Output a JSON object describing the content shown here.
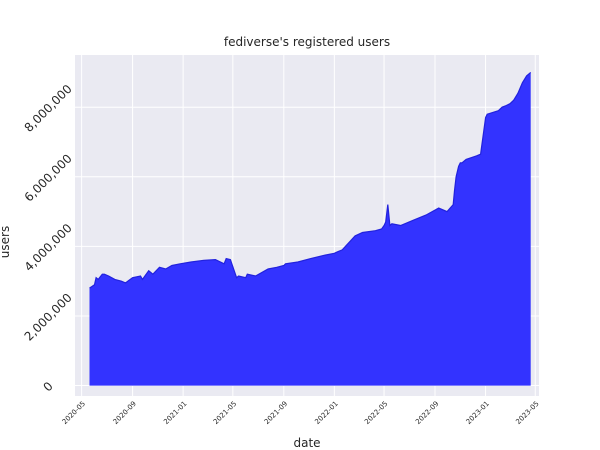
{
  "chart_data": {
    "type": "area",
    "title": "fediverse's registered users",
    "xlabel": "date",
    "ylabel": "users",
    "xlim": [
      "2020-04-15",
      "2023-05-10"
    ],
    "ylim": [
      -300000,
      9500000
    ],
    "grid": true,
    "x_ticks": [
      "2020-05",
      "2020-09",
      "2021-01",
      "2021-05",
      "2021-09",
      "2022-01",
      "2022-05",
      "2022-09",
      "2023-01",
      "2023-05"
    ],
    "y_ticks": [
      {
        "value": 0,
        "label": "0"
      },
      {
        "value": 2000000,
        "label": "2,000,000"
      },
      {
        "value": 4000000,
        "label": "4,000,000"
      },
      {
        "value": 6000000,
        "label": "6,000,000"
      },
      {
        "value": 8000000,
        "label": "8,000,000"
      }
    ],
    "colors": {
      "fill": "#3333ff",
      "line": "#2222dd",
      "plot_bg": "#eaeaf2",
      "grid": "#ffffff"
    },
    "series": [
      {
        "x": [
          "2020-05-20",
          "2020-06-01",
          "2020-06-05",
          "2020-06-10",
          "2020-06-20",
          "2020-06-25",
          "2020-07-05",
          "2020-07-20",
          "2020-08-05",
          "2020-08-15",
          "2020-09-01",
          "2020-09-20",
          "2020-09-25",
          "2020-10-10",
          "2020-10-20",
          "2020-11-05",
          "2020-11-20",
          "2020-12-05",
          "2020-12-25",
          "2021-01-20",
          "2021-02-20",
          "2021-03-20",
          "2021-04-10",
          "2021-04-15",
          "2021-04-25",
          "2021-05-10",
          "2021-05-15",
          "2021-06-01",
          "2021-06-05",
          "2021-06-25",
          "2021-07-25",
          "2021-08-15",
          "2021-09-01",
          "2021-09-05",
          "2021-10-05",
          "2021-11-05",
          "2021-12-10",
          "2022-01-01",
          "2022-01-10",
          "2022-01-20",
          "2022-02-20",
          "2022-03-10",
          "2022-04-10",
          "2022-04-25",
          "2022-05-01",
          "2022-05-05",
          "2022-05-10",
          "2022-05-15",
          "2022-05-20",
          "2022-06-10",
          "2022-07-10",
          "2022-08-10",
          "2022-09-10",
          "2022-09-30",
          "2022-10-15",
          "2022-10-18",
          "2022-10-22",
          "2022-10-28",
          "2022-11-01",
          "2022-11-05",
          "2022-11-15",
          "2022-12-10",
          "2022-12-20",
          "2023-01-01",
          "2023-01-05",
          "2023-02-01",
          "2023-02-10",
          "2023-02-20",
          "2023-03-01",
          "2023-03-10",
          "2023-03-20",
          "2023-03-31",
          "2023-04-10",
          "2023-04-20"
        ],
        "y": [
          2800000,
          2900000,
          3100000,
          3050000,
          3200000,
          3200000,
          3150000,
          3050000,
          3000000,
          2950000,
          3100000,
          3150000,
          3050000,
          3300000,
          3200000,
          3400000,
          3350000,
          3450000,
          3500000,
          3550000,
          3600000,
          3620000,
          3500000,
          3650000,
          3620000,
          3100000,
          3150000,
          3100000,
          3200000,
          3150000,
          3350000,
          3400000,
          3450000,
          3500000,
          3550000,
          3650000,
          3750000,
          3800000,
          3850000,
          3900000,
          4300000,
          4400000,
          4450000,
          4500000,
          4600000,
          4700000,
          5200000,
          4600000,
          4650000,
          4600000,
          4750000,
          4900000,
          5100000,
          5000000,
          5200000,
          5600000,
          6000000,
          6300000,
          6400000,
          6400000,
          6500000,
          6600000,
          6650000,
          7700000,
          7800000,
          7900000,
          8000000,
          8050000,
          8100000,
          8200000,
          8400000,
          8700000,
          8900000,
          9000000
        ]
      }
    ]
  }
}
